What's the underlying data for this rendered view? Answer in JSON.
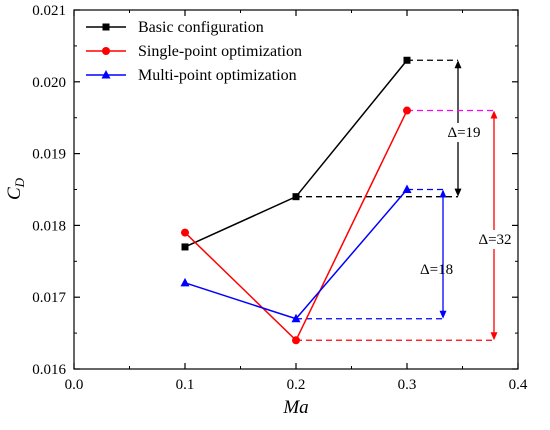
{
  "chart_data": {
    "type": "line",
    "xlabel": "Ma",
    "ylabel": {
      "main": "C",
      "sub": "D"
    },
    "xlim": [
      0.0,
      0.4
    ],
    "ylim": [
      0.016,
      0.021
    ],
    "x_ticks": [
      "0.0",
      "0.1",
      "0.2",
      "0.3",
      "0.4"
    ],
    "y_ticks": [
      "0.016",
      "0.017",
      "0.018",
      "0.019",
      "0.020",
      "0.021"
    ],
    "x": [
      0.1,
      0.2,
      0.3
    ],
    "grid": false,
    "legend_position": "top-left",
    "series": [
      {
        "name": "Basic configuration",
        "values": [
          0.0177,
          0.0184,
          0.0203
        ],
        "color": "#000000",
        "marker": "square"
      },
      {
        "name": "Single-point optimization",
        "values": [
          0.0179,
          0.0164,
          0.0196
        ],
        "color": "#ff0000",
        "marker": "circle"
      },
      {
        "name": "Multi-point optimization",
        "values": [
          0.0172,
          0.0167,
          0.0185
        ],
        "color": "#0000ff",
        "marker": "triangle"
      }
    ],
    "annotations": [
      {
        "label": "Δ=19"
      },
      {
        "label": "Δ=18"
      },
      {
        "label": "Δ=32"
      }
    ]
  }
}
